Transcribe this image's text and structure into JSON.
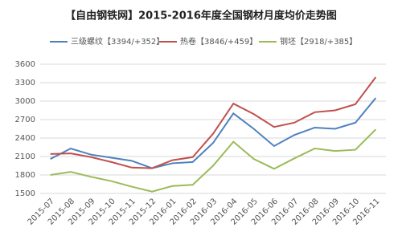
{
  "chart_data": {
    "type": "line",
    "title": "【自由钢铁网】2015-2016年度全国钢材月度均价走势图",
    "categories": [
      "2015-07",
      "2015-08",
      "2015-09",
      "2015-10",
      "2015-11",
      "2015-12",
      "2016-01",
      "2016-02",
      "2016-03",
      "2016-04",
      "2016-05",
      "2016-06",
      "2016-07",
      "2016-08",
      "2016-09",
      "2016-10",
      "2016-11"
    ],
    "series": [
      {
        "name": "三级螺纹【3394/+352】",
        "color": "#4f81bd",
        "values": [
          2060,
          2230,
          2130,
          2080,
          2030,
          1910,
          1990,
          2010,
          2320,
          2800,
          2550,
          2270,
          2450,
          2570,
          2550,
          2650,
          3050
        ]
      },
      {
        "name": "热卷【3846/+459】",
        "color": "#c0504d",
        "values": [
          2140,
          2150,
          2090,
          2010,
          1920,
          1910,
          2040,
          2090,
          2470,
          2960,
          2790,
          2580,
          2650,
          2820,
          2850,
          2950,
          3390
        ]
      },
      {
        "name": "钢坯【2918/+385】",
        "color": "#9bbb59",
        "values": [
          1800,
          1850,
          1770,
          1700,
          1610,
          1530,
          1620,
          1640,
          1950,
          2340,
          2060,
          1900,
          2070,
          2230,
          2190,
          2210,
          2540
        ]
      }
    ],
    "ylim": [
      1500,
      3600
    ],
    "yticks": [
      1500,
      1800,
      2100,
      2400,
      2700,
      3000,
      3300,
      3600
    ],
    "grid": true,
    "legend": "top"
  }
}
